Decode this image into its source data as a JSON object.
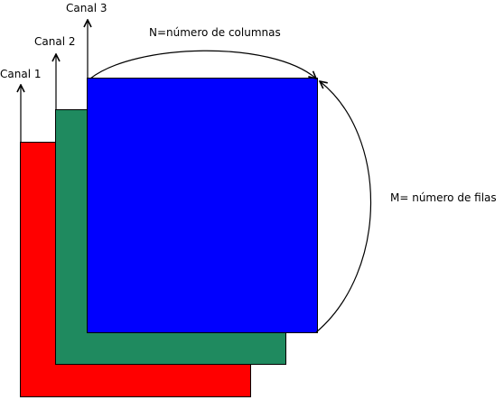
{
  "labels": {
    "channel_1": "Canal 1",
    "channel_2": "Canal 2",
    "channel_3": "Canal 3",
    "columns": "N=número de columnas",
    "rows": "M= número de filas"
  },
  "colors": {
    "channel_1": "#ff0000",
    "channel_2": "#1f8a5f",
    "channel_3": "#0000ff",
    "stroke": "#000000"
  }
}
